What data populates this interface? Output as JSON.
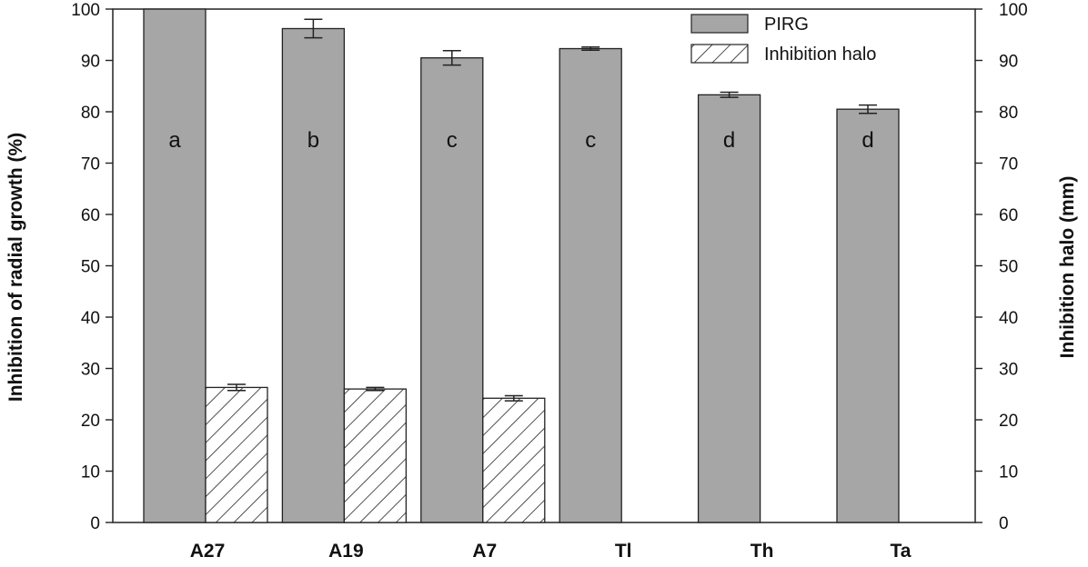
{
  "chart_data": {
    "type": "bar",
    "categories": [
      "A27",
      "A19",
      "A7",
      "Tl",
      "Th",
      "Ta"
    ],
    "series": [
      {
        "name": "PIRG",
        "axis": "left",
        "fill": "hatch-none",
        "values": [
          100,
          96.2,
          90.5,
          92.3,
          83.3,
          80.5
        ],
        "errors": [
          0,
          1.8,
          1.4,
          0.3,
          0.5,
          0.8
        ]
      },
      {
        "name": "Inhibition halo",
        "axis": "right",
        "fill": "hatch",
        "values": [
          26.3,
          26.0,
          24.2,
          null,
          null,
          null
        ],
        "errors": [
          0.6,
          0.3,
          0.5,
          null,
          null,
          null
        ]
      }
    ],
    "letters": [
      "a",
      "b",
      "c",
      "c",
      "d",
      "d"
    ],
    "ylabel": "Inhibition of radial growth (%)",
    "y2label": "Inhibition halo (mm)",
    "ylim": [
      0,
      100
    ],
    "y2lim": [
      0,
      100
    ],
    "yticks": [
      0,
      10,
      20,
      30,
      40,
      50,
      60,
      70,
      80,
      90,
      100
    ],
    "legend_position": "top-right",
    "colors": {
      "pirg": "#a6a6a6",
      "halo": "#ffffff",
      "stroke": "#222222"
    }
  }
}
